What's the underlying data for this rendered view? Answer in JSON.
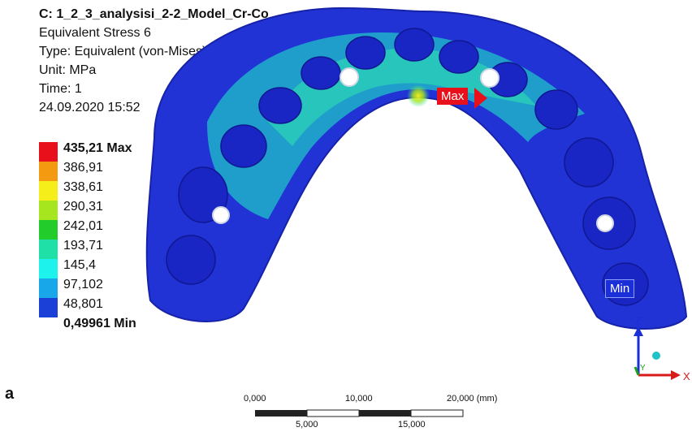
{
  "header": {
    "title": "C: 1_2_3_analysisi_2-2_Model_Cr-Co",
    "result_name": "Equivalent Stress 6",
    "type": "Type: Equivalent (von-Mises) Stress",
    "unit": "Unit: MPa",
    "time": "Time: 1",
    "timestamp": "24.09.2020 15:52"
  },
  "legend": {
    "levels": [
      {
        "label": "435,21 Max",
        "color": "#e8101a",
        "bold": true
      },
      {
        "label": "386,91",
        "color": "#f39a10",
        "bold": false
      },
      {
        "label": "338,61",
        "color": "#f5ee1a",
        "bold": false
      },
      {
        "label": "290,31",
        "color": "#a6e61e",
        "bold": false
      },
      {
        "label": "242,01",
        "color": "#22cc2a",
        "bold": false
      },
      {
        "label": "193,71",
        "color": "#1fe0a6",
        "bold": false
      },
      {
        "label": "145,4",
        "color": "#1ef2ec",
        "bold": false
      },
      {
        "label": "97,102",
        "color": "#18a8ea",
        "bold": false
      },
      {
        "label": "48,801",
        "color": "#1a40d8",
        "bold": false
      },
      {
        "label": "0,49961 Min",
        "color": "",
        "bold": true
      }
    ]
  },
  "probes": {
    "max_label": "Max",
    "min_label": "Min",
    "max_color": "#e8101a",
    "min_color": "#1a2fd8"
  },
  "triad": {
    "z_label": "Z",
    "y_label": "Y",
    "x_label": "X",
    "x_color": "#d81a1a",
    "y_color": "#1aa01a",
    "z_color": "#1a2fd8"
  },
  "panel_label": "a",
  "scale_bar": {
    "top_ticks": [
      "0,000",
      "10,000",
      "20,000 (mm)"
    ],
    "bottom_ticks": [
      "5,000",
      "15,000"
    ]
  }
}
